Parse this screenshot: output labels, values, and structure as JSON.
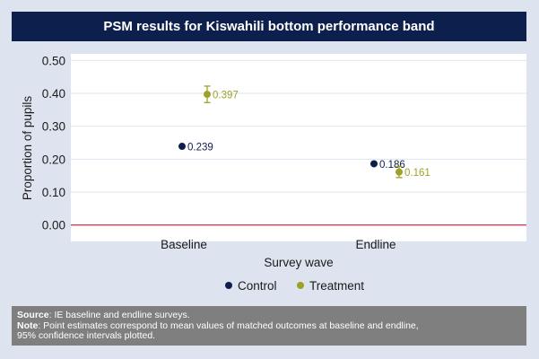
{
  "title": "PSM results for Kiswahili bottom performance band",
  "chart_data": {
    "type": "scatter",
    "categories": [
      "Baseline",
      "Endline"
    ],
    "xlabel": "Survey wave",
    "ylabel": "Proportion of pupils",
    "ylim": [
      -0.05,
      0.52
    ],
    "yticks": [
      "0.00",
      "0.10",
      "0.20",
      "0.30",
      "0.40",
      "0.50"
    ],
    "ytick_values": [
      0,
      0.1,
      0.2,
      0.3,
      0.4,
      0.5
    ],
    "reference_line": 0,
    "grid": true,
    "legend_position": "bottom",
    "series": [
      {
        "name": "Control",
        "color": "#0d1f4d",
        "values": [
          0.239,
          0.186
        ],
        "labels": [
          "0.239",
          "0.186"
        ],
        "ci": [
          null,
          null
        ]
      },
      {
        "name": "Treatment",
        "color": "#9ea226",
        "values": [
          0.397,
          0.161
        ],
        "labels": [
          "0.397",
          "0.161"
        ],
        "ci": [
          [
            0.372,
            0.422
          ],
          [
            0.144,
            0.178
          ]
        ]
      }
    ]
  },
  "note": {
    "source_label": "Source",
    "source_text": ": IE baseline and endline surveys.",
    "note_label": "Note",
    "note_text_1": ": Point estimates correspond to mean values of matched outcomes at baseline and endline,",
    "note_text_2": "95% confidence intervals plotted."
  },
  "colors": {
    "reference_line": "#c4455e",
    "title_bg": "#0d1f4d",
    "note_bg": "#7f7f7f"
  }
}
